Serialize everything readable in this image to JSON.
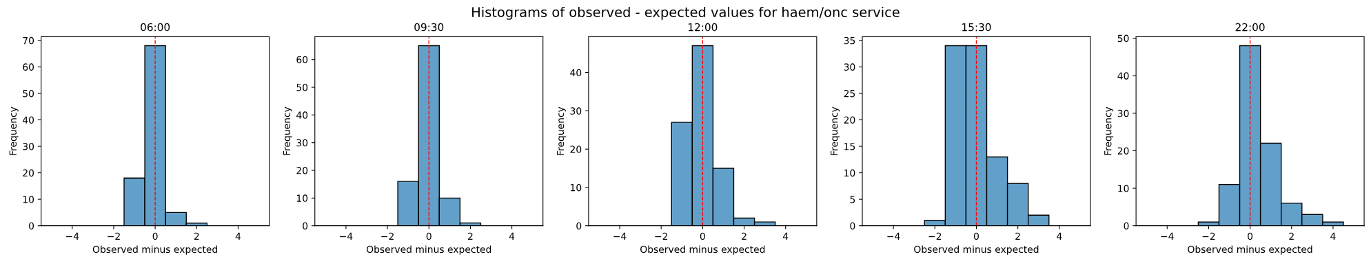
{
  "chart_data": [
    {
      "type": "histogram",
      "title": "06:00",
      "xlabel": "Observed minus expected",
      "ylabel": "Frequency",
      "annotations": [
        "Histograms of observed - expected values for haem/onc service"
      ],
      "bins": [
        -5.5,
        -4.5,
        -3.5,
        -2.5,
        -1.5,
        -0.5,
        0.5,
        1.5,
        2.5,
        3.5,
        4.5,
        5.5
      ],
      "values": [
        0,
        0,
        0,
        0,
        18,
        68,
        5,
        1,
        0,
        0,
        0
      ],
      "color": "#62a0ca",
      "xlim": [
        -5.5,
        5.5
      ],
      "xticks": [
        -4,
        -2,
        0,
        2,
        4
      ],
      "ylim": [
        0,
        71.4
      ],
      "yticks": [
        0,
        10,
        20,
        30,
        40,
        50,
        60,
        70
      ],
      "ref_lines": [
        {
          "axis": "x",
          "value": 0,
          "color": "#ff0000",
          "line_style": "dashed"
        }
      ]
    },
    {
      "type": "histogram",
      "title": "09:30",
      "xlabel": "Observed minus expected",
      "ylabel": "Frequency",
      "bins": [
        -5.5,
        -4.5,
        -3.5,
        -2.5,
        -1.5,
        -0.5,
        0.5,
        1.5,
        2.5,
        3.5,
        4.5,
        5.5
      ],
      "values": [
        0,
        0,
        0,
        0,
        16,
        65,
        10,
        1,
        0,
        0,
        0
      ],
      "color": "#62a0ca",
      "xlim": [
        -5.5,
        5.5
      ],
      "xticks": [
        -4,
        -2,
        0,
        2,
        4
      ],
      "ylim": [
        0,
        68.25
      ],
      "yticks": [
        0,
        10,
        20,
        30,
        40,
        50,
        60
      ],
      "ref_lines": [
        {
          "axis": "x",
          "value": 0,
          "color": "#ff0000",
          "line_style": "dashed"
        }
      ]
    },
    {
      "type": "histogram",
      "title": "12:00",
      "xlabel": "Observed minus expected",
      "ylabel": "Frequency",
      "bins": [
        -5.5,
        -4.5,
        -3.5,
        -2.5,
        -1.5,
        -0.5,
        0.5,
        1.5,
        2.5,
        3.5,
        4.5,
        5.5
      ],
      "values": [
        0,
        0,
        0,
        0,
        27,
        47,
        15,
        2,
        1,
        0,
        0
      ],
      "color": "#62a0ca",
      "xlim": [
        -5.5,
        5.5
      ],
      "xticks": [
        -4,
        -2,
        0,
        2,
        4
      ],
      "ylim": [
        0,
        49.35
      ],
      "yticks": [
        0,
        10,
        20,
        30,
        40
      ],
      "ref_lines": [
        {
          "axis": "x",
          "value": 0,
          "color": "#ff0000",
          "line_style": "dashed"
        }
      ]
    },
    {
      "type": "histogram",
      "title": "15:30",
      "xlabel": "Observed minus expected",
      "ylabel": "Frequency",
      "bins": [
        -5.5,
        -4.5,
        -3.5,
        -2.5,
        -1.5,
        -0.5,
        0.5,
        1.5,
        2.5,
        3.5,
        4.5,
        5.5
      ],
      "values": [
        0,
        0,
        0,
        1,
        34,
        34,
        13,
        8,
        2,
        0,
        0
      ],
      "color": "#62a0ca",
      "xlim": [
        -5.5,
        5.5
      ],
      "xticks": [
        -4,
        -2,
        0,
        2,
        4
      ],
      "ylim": [
        0,
        35.7
      ],
      "yticks": [
        0,
        5,
        10,
        15,
        20,
        25,
        30,
        35
      ],
      "ref_lines": [
        {
          "axis": "x",
          "value": 0,
          "color": "#ff0000",
          "line_style": "dashed"
        }
      ]
    },
    {
      "type": "histogram",
      "title": "22:00",
      "xlabel": "Observed minus expected",
      "ylabel": "Frequency",
      "bins": [
        -5.5,
        -4.5,
        -3.5,
        -2.5,
        -1.5,
        -0.5,
        0.5,
        1.5,
        2.5,
        3.5,
        4.5,
        5.5
      ],
      "values": [
        0,
        0,
        0,
        1,
        11,
        48,
        22,
        6,
        3,
        1,
        0
      ],
      "color": "#62a0ca",
      "xlim": [
        -5.5,
        5.5
      ],
      "xticks": [
        -4,
        -2,
        0,
        2,
        4
      ],
      "ylim": [
        0,
        50.4
      ],
      "yticks": [
        0,
        10,
        20,
        30,
        40,
        50
      ],
      "ref_lines": [
        {
          "axis": "x",
          "value": 0,
          "color": "#ff0000",
          "line_style": "dashed"
        }
      ]
    }
  ]
}
